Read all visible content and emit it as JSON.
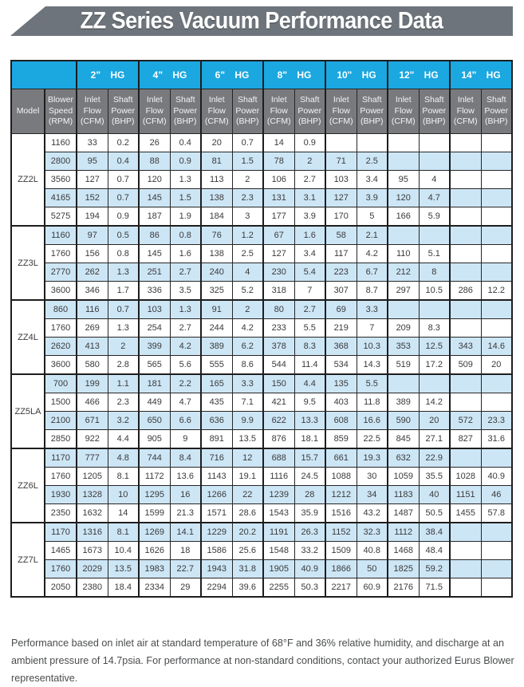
{
  "title": "ZZ Series Vacuum Performance Data",
  "colors": {
    "banner_gray": "#6d747b",
    "vacuum_header_blue": "#1ba7e0",
    "column_header_gray": "#797a7e",
    "row_stripe_blue": "#cde6f6",
    "border_black": "#1e1e1e"
  },
  "table": {
    "vacuum_levels": [
      "2\" HG",
      "4\" HG",
      "6\" HG",
      "8\" HG",
      "10\" HG",
      "12\" HG",
      "14\" HG"
    ],
    "column_headers": {
      "model": "Model",
      "speed": "Blower Speed (RPM)",
      "inlet_flow": "Inlet Flow (CFM)",
      "shaft_power": "Shaft Power (BHP)"
    },
    "groups": [
      {
        "model": "ZZ2L",
        "rows": [
          {
            "rpm": "1160",
            "values": [
              "33",
              "0.2",
              "26",
              "0.4",
              "20",
              "0.7",
              "14",
              "0.9",
              "",
              "",
              "",
              "",
              "",
              ""
            ]
          },
          {
            "rpm": "2800",
            "values": [
              "95",
              "0.4",
              "88",
              "0.9",
              "81",
              "1.5",
              "78",
              "2",
              "71",
              "2.5",
              "",
              "",
              "",
              ""
            ]
          },
          {
            "rpm": "3560",
            "values": [
              "127",
              "0.7",
              "120",
              "1.3",
              "113",
              "2",
              "106",
              "2.7",
              "103",
              "3.4",
              "95",
              "4",
              "",
              ""
            ]
          },
          {
            "rpm": "4165",
            "values": [
              "152",
              "0.7",
              "145",
              "1.5",
              "138",
              "2.3",
              "131",
              "3.1",
              "127",
              "3.9",
              "120",
              "4.7",
              "",
              ""
            ]
          },
          {
            "rpm": "5275",
            "values": [
              "194",
              "0.9",
              "187",
              "1.9",
              "184",
              "3",
              "177",
              "3.9",
              "170",
              "5",
              "166",
              "5.9",
              "",
              ""
            ]
          }
        ]
      },
      {
        "model": "ZZ3L",
        "rows": [
          {
            "rpm": "1160",
            "values": [
              "97",
              "0.5",
              "86",
              "0.8",
              "76",
              "1.2",
              "67",
              "1.6",
              "58",
              "2.1",
              "",
              "",
              "",
              ""
            ]
          },
          {
            "rpm": "1760",
            "values": [
              "156",
              "0.8",
              "145",
              "1.6",
              "138",
              "2.5",
              "127",
              "3.4",
              "117",
              "4.2",
              "110",
              "5.1",
              "",
              ""
            ]
          },
          {
            "rpm": "2770",
            "values": [
              "262",
              "1.3",
              "251",
              "2.7",
              "240",
              "4",
              "230",
              "5.4",
              "223",
              "6.7",
              "212",
              "8",
              "",
              ""
            ]
          },
          {
            "rpm": "3600",
            "values": [
              "346",
              "1.7",
              "336",
              "3.5",
              "325",
              "5.2",
              "318",
              "7",
              "307",
              "8.7",
              "297",
              "10.5",
              "286",
              "12.2"
            ]
          }
        ]
      },
      {
        "model": "ZZ4L",
        "rows": [
          {
            "rpm": "860",
            "values": [
              "116",
              "0.7",
              "103",
              "1.3",
              "91",
              "2",
              "80",
              "2.7",
              "69",
              "3.3",
              "",
              "",
              "",
              ""
            ]
          },
          {
            "rpm": "1760",
            "values": [
              "269",
              "1.3",
              "254",
              "2.7",
              "244",
              "4.2",
              "233",
              "5.5",
              "219",
              "7",
              "209",
              "8.3",
              "",
              ""
            ]
          },
          {
            "rpm": "2620",
            "values": [
              "413",
              "2",
              "399",
              "4.2",
              "389",
              "6.2",
              "378",
              "8.3",
              "368",
              "10.3",
              "353",
              "12.5",
              "343",
              "14.6"
            ]
          },
          {
            "rpm": "3600",
            "values": [
              "580",
              "2.8",
              "565",
              "5.6",
              "555",
              "8.6",
              "544",
              "11.4",
              "534",
              "14.3",
              "519",
              "17.2",
              "509",
              "20"
            ]
          }
        ]
      },
      {
        "model": "ZZ5LA",
        "rows": [
          {
            "rpm": "700",
            "values": [
              "199",
              "1.1",
              "181",
              "2.2",
              "165",
              "3.3",
              "150",
              "4.4",
              "135",
              "5.5",
              "",
              "",
              "",
              ""
            ]
          },
          {
            "rpm": "1500",
            "values": [
              "466",
              "2.3",
              "449",
              "4.7",
              "435",
              "7.1",
              "421",
              "9.5",
              "403",
              "11.8",
              "389",
              "14.2",
              "",
              ""
            ]
          },
          {
            "rpm": "2100",
            "values": [
              "671",
              "3.2",
              "650",
              "6.6",
              "636",
              "9.9",
              "622",
              "13.3",
              "608",
              "16.6",
              "590",
              "20",
              "572",
              "23.3"
            ]
          },
          {
            "rpm": "2850",
            "values": [
              "922",
              "4.4",
              "905",
              "9",
              "891",
              "13.5",
              "876",
              "18.1",
              "859",
              "22.5",
              "845",
              "27.1",
              "827",
              "31.6"
            ]
          }
        ]
      },
      {
        "model": "ZZ6L",
        "rows": [
          {
            "rpm": "1170",
            "values": [
              "777",
              "4.8",
              "744",
              "8.4",
              "716",
              "12",
              "688",
              "15.7",
              "661",
              "19.3",
              "632",
              "22.9",
              "",
              ""
            ]
          },
          {
            "rpm": "1760",
            "values": [
              "1205",
              "8.1",
              "1172",
              "13.6",
              "1143",
              "19.1",
              "1116",
              "24.5",
              "1088",
              "30",
              "1059",
              "35.5",
              "1028",
              "40.9"
            ]
          },
          {
            "rpm": "1930",
            "values": [
              "1328",
              "10",
              "1295",
              "16",
              "1266",
              "22",
              "1239",
              "28",
              "1212",
              "34",
              "1183",
              "40",
              "1151",
              "46"
            ]
          },
          {
            "rpm": "2350",
            "values": [
              "1632",
              "14",
              "1599",
              "21.3",
              "1571",
              "28.6",
              "1543",
              "35.9",
              "1516",
              "43.2",
              "1487",
              "50.5",
              "1455",
              "57.8"
            ]
          }
        ]
      },
      {
        "model": "ZZ7L",
        "rows": [
          {
            "rpm": "1170",
            "values": [
              "1316",
              "8.1",
              "1269",
              "14.1",
              "1229",
              "20.2",
              "1191",
              "26.3",
              "1152",
              "32.3",
              "1112",
              "38.4",
              "",
              ""
            ]
          },
          {
            "rpm": "1465",
            "values": [
              "1673",
              "10.4",
              "1626",
              "18",
              "1586",
              "25.6",
              "1548",
              "33.2",
              "1509",
              "40.8",
              "1468",
              "48.4",
              "",
              ""
            ]
          },
          {
            "rpm": "1760",
            "values": [
              "2029",
              "13.5",
              "1983",
              "22.7",
              "1943",
              "31.8",
              "1905",
              "40.9",
              "1866",
              "50",
              "1825",
              "59.2",
              "",
              ""
            ]
          },
          {
            "rpm": "2050",
            "values": [
              "2380",
              "18.4",
              "2334",
              "29",
              "2294",
              "39.6",
              "2255",
              "50.3",
              "2217",
              "60.9",
              "2176",
              "71.5",
              "",
              ""
            ]
          }
        ]
      }
    ]
  },
  "footnote": "Performance based on inlet air at standard temperature of 68°F and 36% relative humidity, and discharge at an ambient pressure of 14.7psia. For performance at non-standard conditions, contact your authorized Eurus Blower representative."
}
